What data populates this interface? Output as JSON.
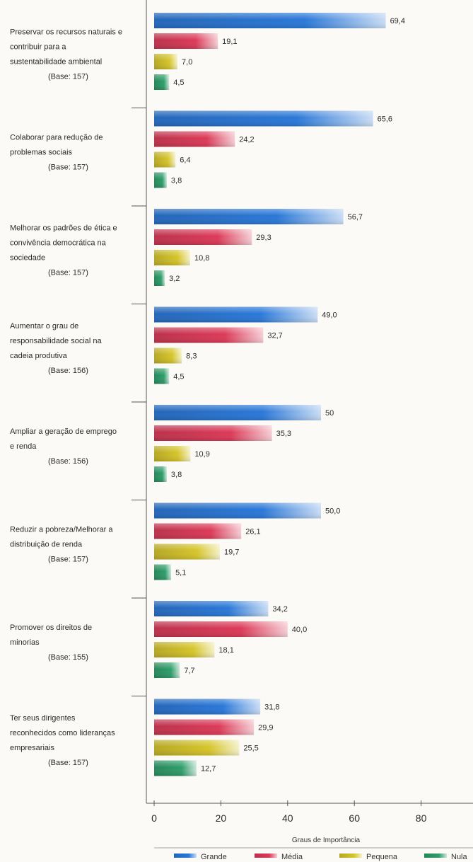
{
  "chart_data": {
    "type": "bar",
    "orientation": "horizontal",
    "xlabel": "Graus de Importância",
    "xlim": [
      0,
      90
    ],
    "xticks": [
      0,
      20,
      40,
      60,
      80
    ],
    "grid": false,
    "legend_position": "bottom",
    "categories": [
      {
        "lines": [
          "Preservar os recursos naturais e",
          "contribuir para a",
          "sustentabilidade ambiental"
        ],
        "base": "(Base: 157)"
      },
      {
        "lines": [
          "Colaborar para redução de",
          "problemas sociais"
        ],
        "base": "(Base: 157)"
      },
      {
        "lines": [
          "Melhorar os padrões de ética e",
          "convivência democrática na",
          "sociedade"
        ],
        "base": "(Base: 157)"
      },
      {
        "lines": [
          "Aumentar o grau de",
          "responsabilidade social na",
          "cadeia produtiva"
        ],
        "base": "(Base: 156)"
      },
      {
        "lines": [
          "Ampliar a geração de emprego",
          "e renda"
        ],
        "base": "(Base: 156)"
      },
      {
        "lines": [
          "Reduzir a pobreza/Melhorar a",
          "distribuição de renda"
        ],
        "base": "(Base: 157)"
      },
      {
        "lines": [
          "Promover os direitos de",
          "minorias"
        ],
        "base": "(Base: 155)"
      },
      {
        "lines": [
          "Ter seus dirigentes",
          "reconhecidos como lideranças",
          "empresariais"
        ],
        "base": "(Base: 157)"
      }
    ],
    "series": [
      {
        "name": "Grande",
        "color": "#2a78d8",
        "values": [
          69.4,
          65.6,
          56.7,
          49.0,
          50,
          50.0,
          34.2,
          31.8
        ],
        "labels": [
          "69,4",
          "65,6",
          "56,7",
          "49,0",
          "50",
          "50,0",
          "34,2",
          "31,8"
        ]
      },
      {
        "name": "Média",
        "color": "#dc3a58",
        "values": [
          19.1,
          24.2,
          29.3,
          32.7,
          35.3,
          26.1,
          40.0,
          29.9
        ],
        "labels": [
          "19,1",
          "24,2",
          "29,3",
          "32,7",
          "35,3",
          "26,1",
          "40,0",
          "29,9"
        ]
      },
      {
        "name": "Pequena",
        "color": "#d6c52a",
        "values": [
          7.0,
          6.4,
          10.8,
          8.3,
          10.9,
          19.7,
          18.1,
          25.5
        ],
        "labels": [
          "7,0",
          "6,4",
          "10,8",
          "8,3",
          "10,9",
          "19,7",
          "18,1",
          "25,5"
        ]
      },
      {
        "name": "Nula",
        "color": "#2e9e6a",
        "values": [
          4.5,
          3.8,
          3.2,
          4.5,
          3.8,
          5.1,
          7.7,
          12.7
        ],
        "labels": [
          "4,5",
          "3,8",
          "3,2",
          "4,5",
          "3,8",
          "5,1",
          "7,7",
          "12,7"
        ]
      }
    ],
    "legend_labels": [
      "Grande",
      "Média",
      "Pequena",
      "Nula"
    ]
  }
}
